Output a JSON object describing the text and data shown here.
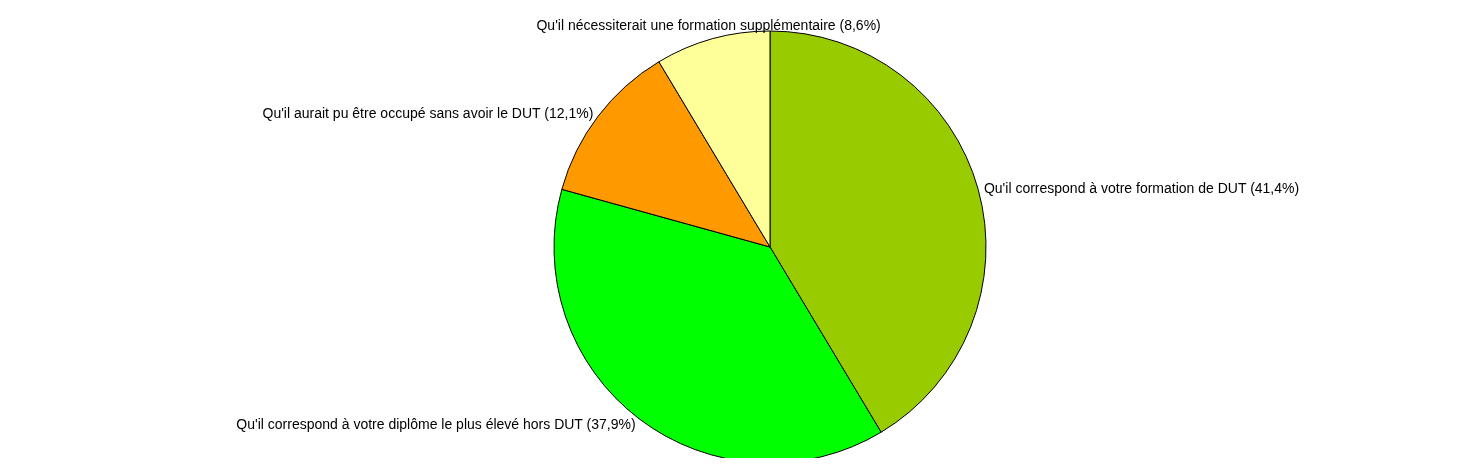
{
  "chart_data": {
    "type": "pie",
    "categories": [
      "Qu'il correspond à votre formation de DUT",
      "Qu'il correspond à votre diplôme le plus élevé hors DUT",
      "Qu'il aurait pu être occupé sans avoir le DUT",
      "Qu'il nécessiterait une formation supplémentaire"
    ],
    "values": [
      41.4,
      37.9,
      12.1,
      8.6
    ],
    "value_labels": [
      "(41,4%)",
      "(37,9%)",
      "(12,1%)",
      "(8,6%)"
    ],
    "colors": [
      "#99cc00",
      "#00ff00",
      "#ff9900",
      "#ffff99"
    ]
  }
}
